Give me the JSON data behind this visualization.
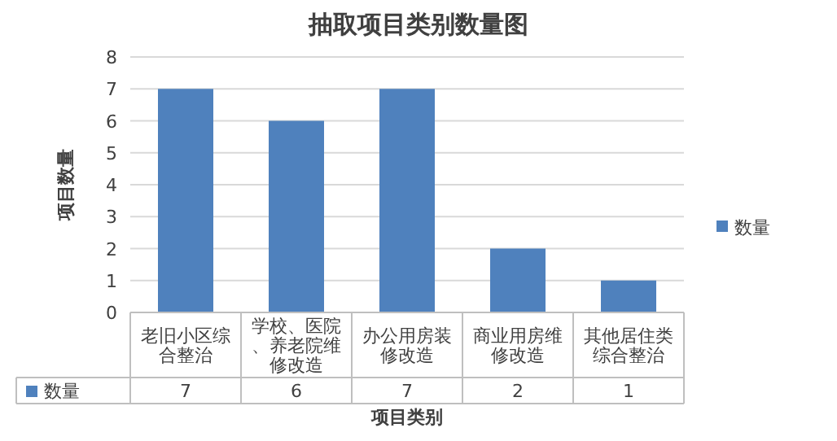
{
  "chart_data": {
    "type": "bar",
    "title": "抽取项目类别数量图",
    "xlabel": "项目类别",
    "ylabel": "项目数量",
    "categories": [
      "老旧小区综合整治",
      "学校、医院、养老院维修改造",
      "办公用房装修改造",
      "商业用房维修改造",
      "其他居住类综合整治"
    ],
    "series": [
      {
        "name": "数量",
        "color": "#4f81bd",
        "values": [
          7,
          6,
          7,
          2,
          1
        ]
      }
    ],
    "ylim": [
      0,
      8
    ],
    "yticks": [
      0,
      1,
      2,
      3,
      4,
      5,
      6,
      7,
      8
    ],
    "grid": "y",
    "legend": "right",
    "data_labels": true
  }
}
